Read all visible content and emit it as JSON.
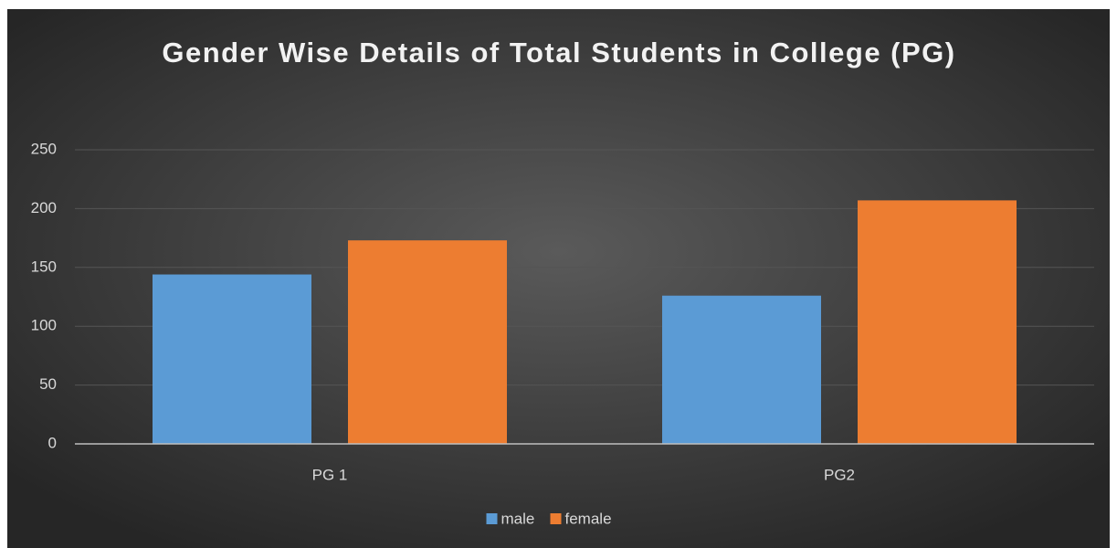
{
  "chart_data": {
    "type": "bar",
    "title": "Gender Wise Details of Total Students in College (PG)",
    "categories": [
      "PG 1",
      "PG2"
    ],
    "series": [
      {
        "name": "male",
        "color": "#5b9bd5",
        "values": [
          144,
          126
        ]
      },
      {
        "name": "female",
        "color": "#ed7d31",
        "values": [
          173,
          207
        ]
      }
    ],
    "ylim": [
      0,
      250
    ],
    "yticks": [
      0,
      50,
      100,
      150,
      200,
      250
    ],
    "grid": true,
    "legend": "bottom"
  }
}
